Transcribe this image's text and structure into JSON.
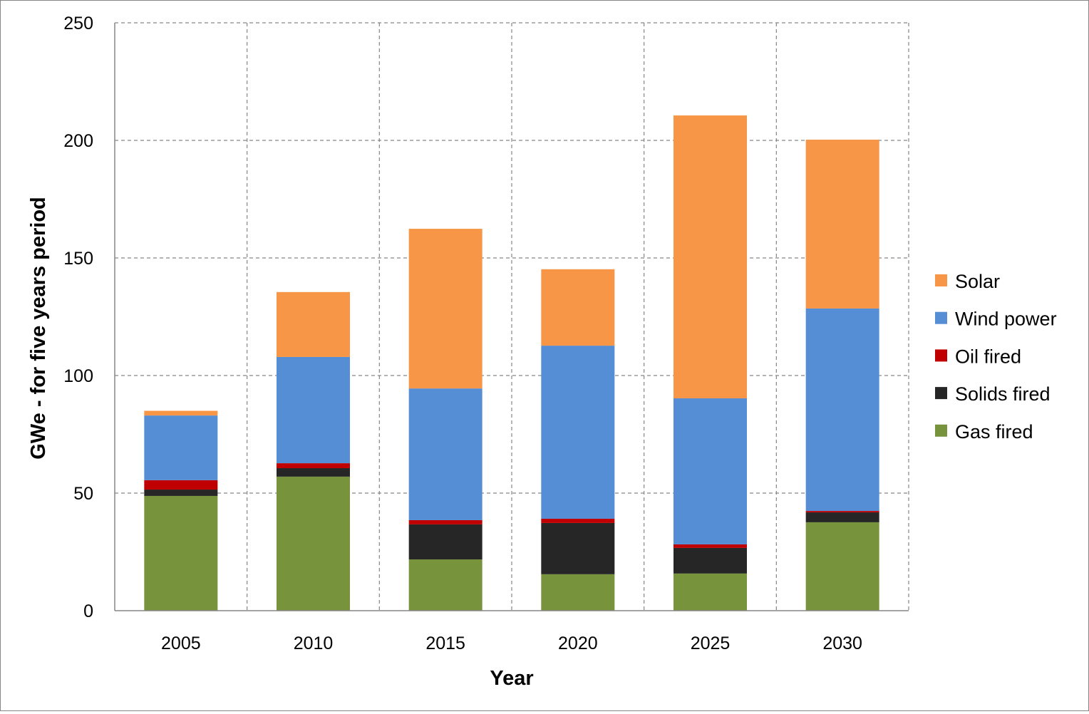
{
  "chart_data": {
    "type": "bar",
    "stacked": true,
    "title": "",
    "xlabel": "Year",
    "ylabel": "GWe - for five years period",
    "ylim": [
      0,
      250
    ],
    "yticks": [
      0,
      50,
      100,
      150,
      200,
      250
    ],
    "grid": true,
    "legend_position": "right",
    "categories": [
      "2005",
      "2010",
      "2015",
      "2020",
      "2025",
      "2030"
    ],
    "series": [
      {
        "name": "Gas fired",
        "color": "#77933C",
        "values": [
          48.8,
          57.0,
          21.8,
          15.5,
          15.8,
          37.6
        ]
      },
      {
        "name": "Solids fired",
        "color": "#262626",
        "values": [
          2.7,
          3.6,
          14.9,
          21.8,
          10.9,
          4.2
        ]
      },
      {
        "name": "Oil fired",
        "color": "#C00000",
        "values": [
          4.0,
          2.1,
          1.8,
          1.8,
          1.5,
          0.6
        ]
      },
      {
        "name": "Wind power",
        "color": "#558ED5",
        "values": [
          27.5,
          45.2,
          56.0,
          73.6,
          62.1,
          86.1
        ]
      },
      {
        "name": "Solar",
        "color": "#F79646",
        "values": [
          2.0,
          27.6,
          67.9,
          32.5,
          120.3,
          71.8
        ]
      }
    ]
  }
}
